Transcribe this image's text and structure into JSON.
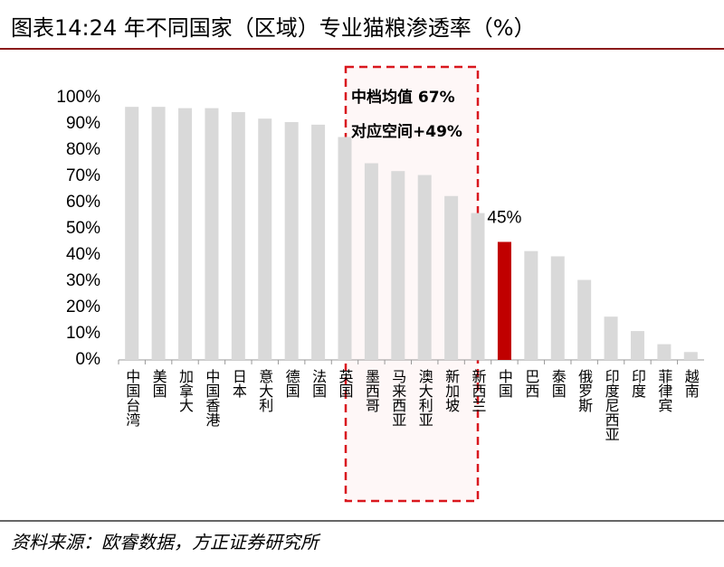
{
  "chart_data": {
    "type": "bar",
    "title": "图表14:24 年不同国家（区域）专业猫粮渗透率（%）",
    "categories": [
      "中国台湾",
      "美国",
      "加拿大",
      "中国香港",
      "日本",
      "意大利",
      "德国",
      "法国",
      "英国",
      "墨西哥",
      "马来西亚",
      "澳大利亚",
      "新加坡",
      "新西兰",
      "中国",
      "巴西",
      "泰国",
      "俄罗斯",
      "印度尼西亚",
      "印度",
      "菲律宾",
      "越南"
    ],
    "values": [
      96.5,
      96.5,
      96,
      96,
      94.5,
      92,
      90.7,
      89.7,
      85,
      75,
      72,
      70.5,
      62.5,
      56,
      45,
      41.5,
      39.5,
      30.5,
      16.5,
      11,
      6,
      3
    ],
    "value_labels": [
      null,
      null,
      null,
      null,
      null,
      null,
      null,
      null,
      null,
      null,
      null,
      null,
      null,
      null,
      "45%",
      null,
      null,
      null,
      null,
      null,
      null,
      null
    ],
    "colors": [
      "#d9d9d9",
      "#d9d9d9",
      "#d9d9d9",
      "#d9d9d9",
      "#d9d9d9",
      "#d9d9d9",
      "#d9d9d9",
      "#d9d9d9",
      "#d9d9d9",
      "#d9d9d9",
      "#d9d9d9",
      "#d9d9d9",
      "#d9d9d9",
      "#d9d9d9",
      "#c00000",
      "#d9d9d9",
      "#d9d9d9",
      "#d9d9d9",
      "#d9d9d9",
      "#d9d9d9",
      "#d9d9d9",
      "#d9d9d9"
    ],
    "ylim": [
      0,
      100
    ],
    "yticks": [
      {
        "value": 0,
        "label": "0%"
      },
      {
        "value": 10,
        "label": "10%"
      },
      {
        "value": 20,
        "label": "20%"
      },
      {
        "value": 30,
        "label": "30%"
      },
      {
        "value": 40,
        "label": "40%"
      },
      {
        "value": 50,
        "label": "50%"
      },
      {
        "value": 60,
        "label": "60%"
      },
      {
        "value": 70,
        "label": "70%"
      },
      {
        "value": 80,
        "label": "80%"
      },
      {
        "value": 90,
        "label": "90%"
      },
      {
        "value": 100,
        "label": "100%"
      }
    ],
    "grid": false,
    "annotations": [
      "中档均值 67%",
      "对应空间+49%"
    ],
    "source": "资料来源：欧睿数据，方正证券研究所"
  }
}
